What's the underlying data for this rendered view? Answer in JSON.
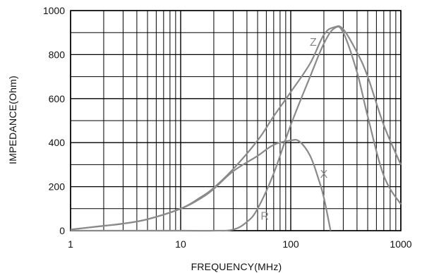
{
  "chart_data": {
    "type": "line",
    "title": "",
    "xlabel": "FREQUENCY(MHz)",
    "ylabel": "IMPEDANCE(Ohm)",
    "xscale": "log",
    "xlim": [
      1,
      1000
    ],
    "ylim": [
      0,
      1000
    ],
    "grid": true,
    "x_ticks": [
      "1",
      "10",
      "100",
      "1000"
    ],
    "y_ticks": [
      "0",
      "200",
      "400",
      "600",
      "800",
      "1000"
    ],
    "series_color": "#8a8a8a",
    "series": [
      {
        "name": "Z",
        "x": [
          1,
          2,
          3,
          5,
          10,
          15,
          20,
          30,
          50,
          70,
          100,
          150,
          200,
          250,
          300,
          400,
          500,
          700,
          1000
        ],
        "y": [
          5,
          22,
          32,
          52,
          100,
          150,
          195,
          280,
          410,
          520,
          630,
          760,
          890,
          925,
          915,
          810,
          700,
          480,
          300
        ]
      },
      {
        "name": "X",
        "x": [
          1,
          2,
          3,
          5,
          10,
          15,
          20,
          30,
          50,
          70,
          100,
          120,
          150,
          180,
          200,
          230
        ],
        "y": [
          5,
          22,
          32,
          52,
          100,
          145,
          190,
          270,
          340,
          390,
          410,
          405,
          340,
          230,
          150,
          0
        ]
      },
      {
        "name": "R",
        "x": [
          1,
          10,
          20,
          30,
          40,
          50,
          70,
          100,
          150,
          200,
          250,
          300,
          400,
          500,
          700,
          1000
        ],
        "y": [
          0,
          0,
          0,
          5,
          40,
          100,
          260,
          480,
          700,
          850,
          920,
          900,
          720,
          520,
          250,
          120
        ]
      }
    ],
    "curve_labels": [
      {
        "text": "Z",
        "x": 160,
        "y": 840
      },
      {
        "text": "X",
        "x": 200,
        "y": 240
      },
      {
        "text": "R",
        "x": 58,
        "y": 50
      }
    ]
  }
}
